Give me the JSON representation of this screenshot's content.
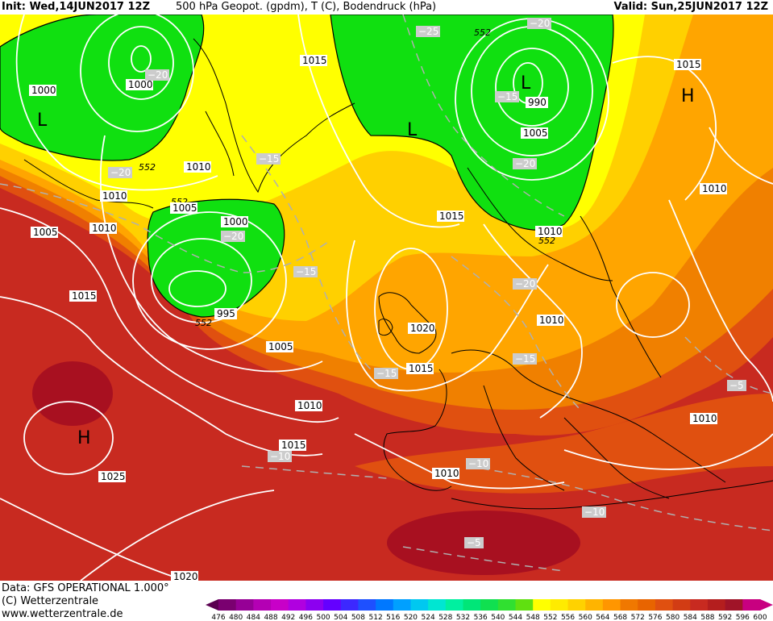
{
  "header": {
    "init": "Init: Wed,14JUN2017 12Z",
    "title": "500 hPa Geopot. (gpdm), T (C), Bodendruck (hPa)",
    "valid": "Valid: Sun,25JUN2017 12Z"
  },
  "footer": {
    "data_line": "Data: GFS OPERATIONAL 1.000°",
    "copyright": "(C) Wetterzentrale",
    "website": "www.wetterzentrale.de"
  },
  "colors": {
    "green": "#10e010",
    "yellow": "#ffff00",
    "yellow_orange": "#ffd000",
    "orange": "#ffa500",
    "dark_orange": "#f08000",
    "red_orange": "#e05010",
    "red": "#c82a20",
    "dark_red": "#a81020"
  },
  "scale": {
    "values": [
      "476",
      "480",
      "484",
      "488",
      "492",
      "496",
      "500",
      "504",
      "508",
      "512",
      "516",
      "520",
      "524",
      "528",
      "532",
      "536",
      "540",
      "544",
      "548",
      "552",
      "556",
      "560",
      "564",
      "568",
      "572",
      "576",
      "580",
      "584",
      "588",
      "592",
      "596",
      "600"
    ],
    "colors": [
      "#5a0050",
      "#7a0070",
      "#960096",
      "#b400b4",
      "#c800c8",
      "#b000e0",
      "#8c00f0",
      "#6400ff",
      "#3c28ff",
      "#1e50ff",
      "#0078ff",
      "#00a0ff",
      "#00c8f0",
      "#00e6d2",
      "#00f0a0",
      "#00e678",
      "#10e050",
      "#30e030",
      "#60e010",
      "#ffff00",
      "#ffeb00",
      "#ffd200",
      "#ffb400",
      "#ff9600",
      "#f07800",
      "#e86400",
      "#e05010",
      "#d23c14",
      "#c82a20",
      "#b41e1e",
      "#a01428",
      "#c80080"
    ]
  },
  "pressure_centers": [
    {
      "label": "L",
      "kind": "low"
    },
    {
      "label": "L",
      "kind": "low"
    },
    {
      "label": "L",
      "kind": "low"
    },
    {
      "label": "H",
      "kind": "high"
    },
    {
      "label": "H",
      "kind": "high"
    }
  ],
  "isobar_labels": [
    "1000",
    "1000",
    "1005",
    "1010",
    "1005",
    "1010",
    "1015",
    "1010",
    "1005",
    "1000",
    "995",
    "1005",
    "1010",
    "1015",
    "1015",
    "1020",
    "1015",
    "1010",
    "1010",
    "1015",
    "1010",
    "990",
    "1005",
    "1010",
    "1015",
    "1010",
    "1025",
    "1020"
  ],
  "temp_labels": [
    "−25",
    "−20",
    "−20",
    "−15",
    "−20",
    "−15",
    "−15",
    "−20",
    "−20",
    "−15",
    "−15",
    "−10",
    "−10",
    "−10",
    "−5",
    "−5",
    "−20"
  ],
  "geopot_labels": [
    "552",
    "552",
    "552",
    "552",
    "552"
  ]
}
